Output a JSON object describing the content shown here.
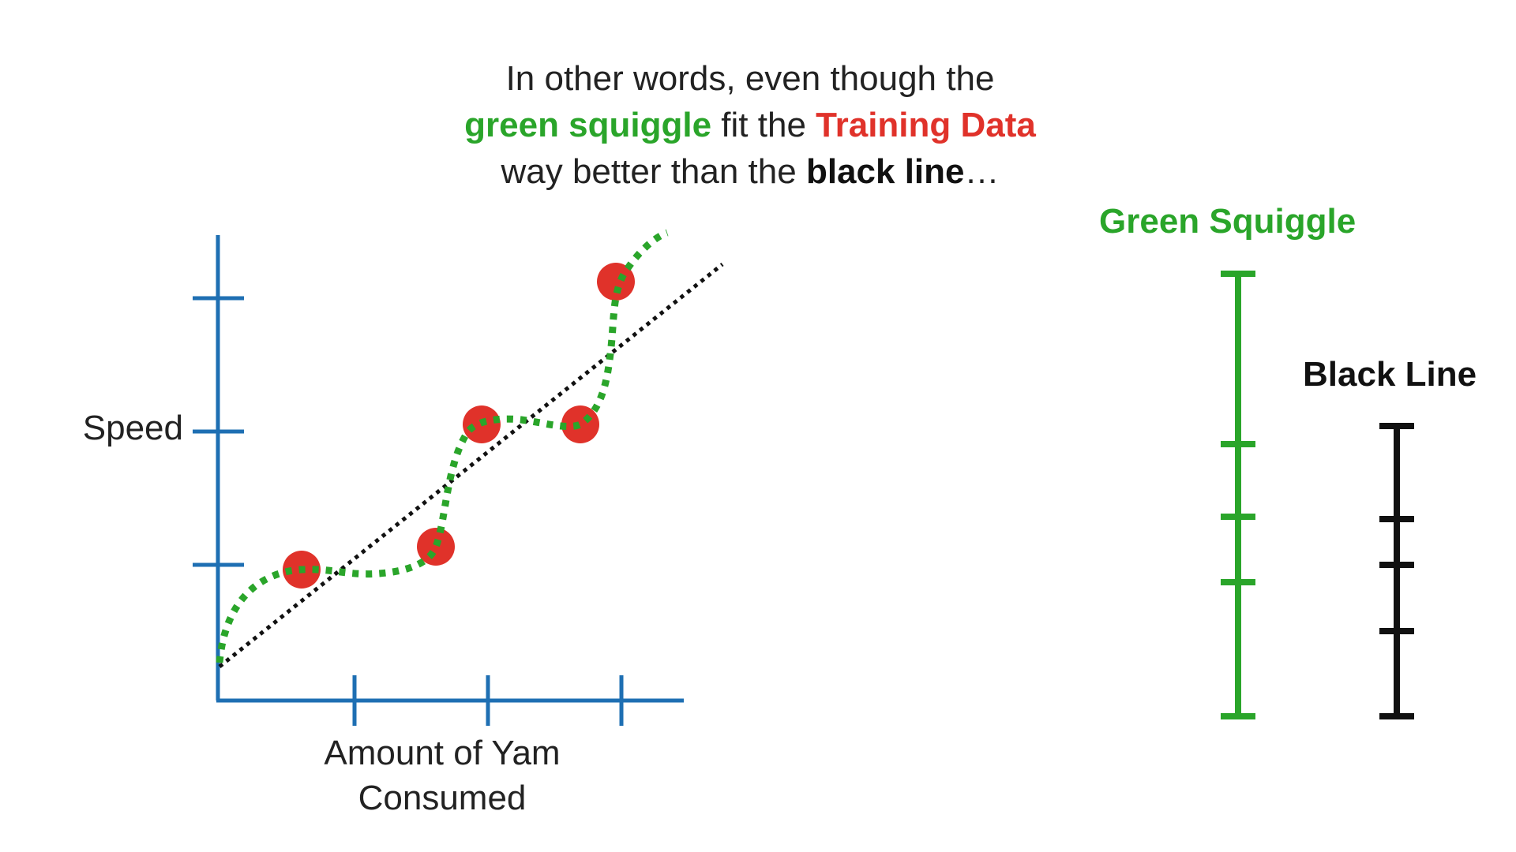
{
  "caption": {
    "line1": "In other words, even though the",
    "line2_green": "green squiggle",
    "line2_mid": " fit the ",
    "line2_red": "Training Data",
    "line3_pre": "way better than the ",
    "line3_bold": "black line",
    "line3_post": "…"
  },
  "axes": {
    "ylabel": "Speed",
    "xlabel_line1": "Amount of Yam",
    "xlabel_line2": "Consumed"
  },
  "colors": {
    "axis": "#1e6fb3",
    "point": "#e0322a",
    "squiggle": "#2aa52a",
    "line": "#111111"
  },
  "bars": {
    "green_label": "Green Squiggle",
    "black_label": "Black Line"
  }
}
